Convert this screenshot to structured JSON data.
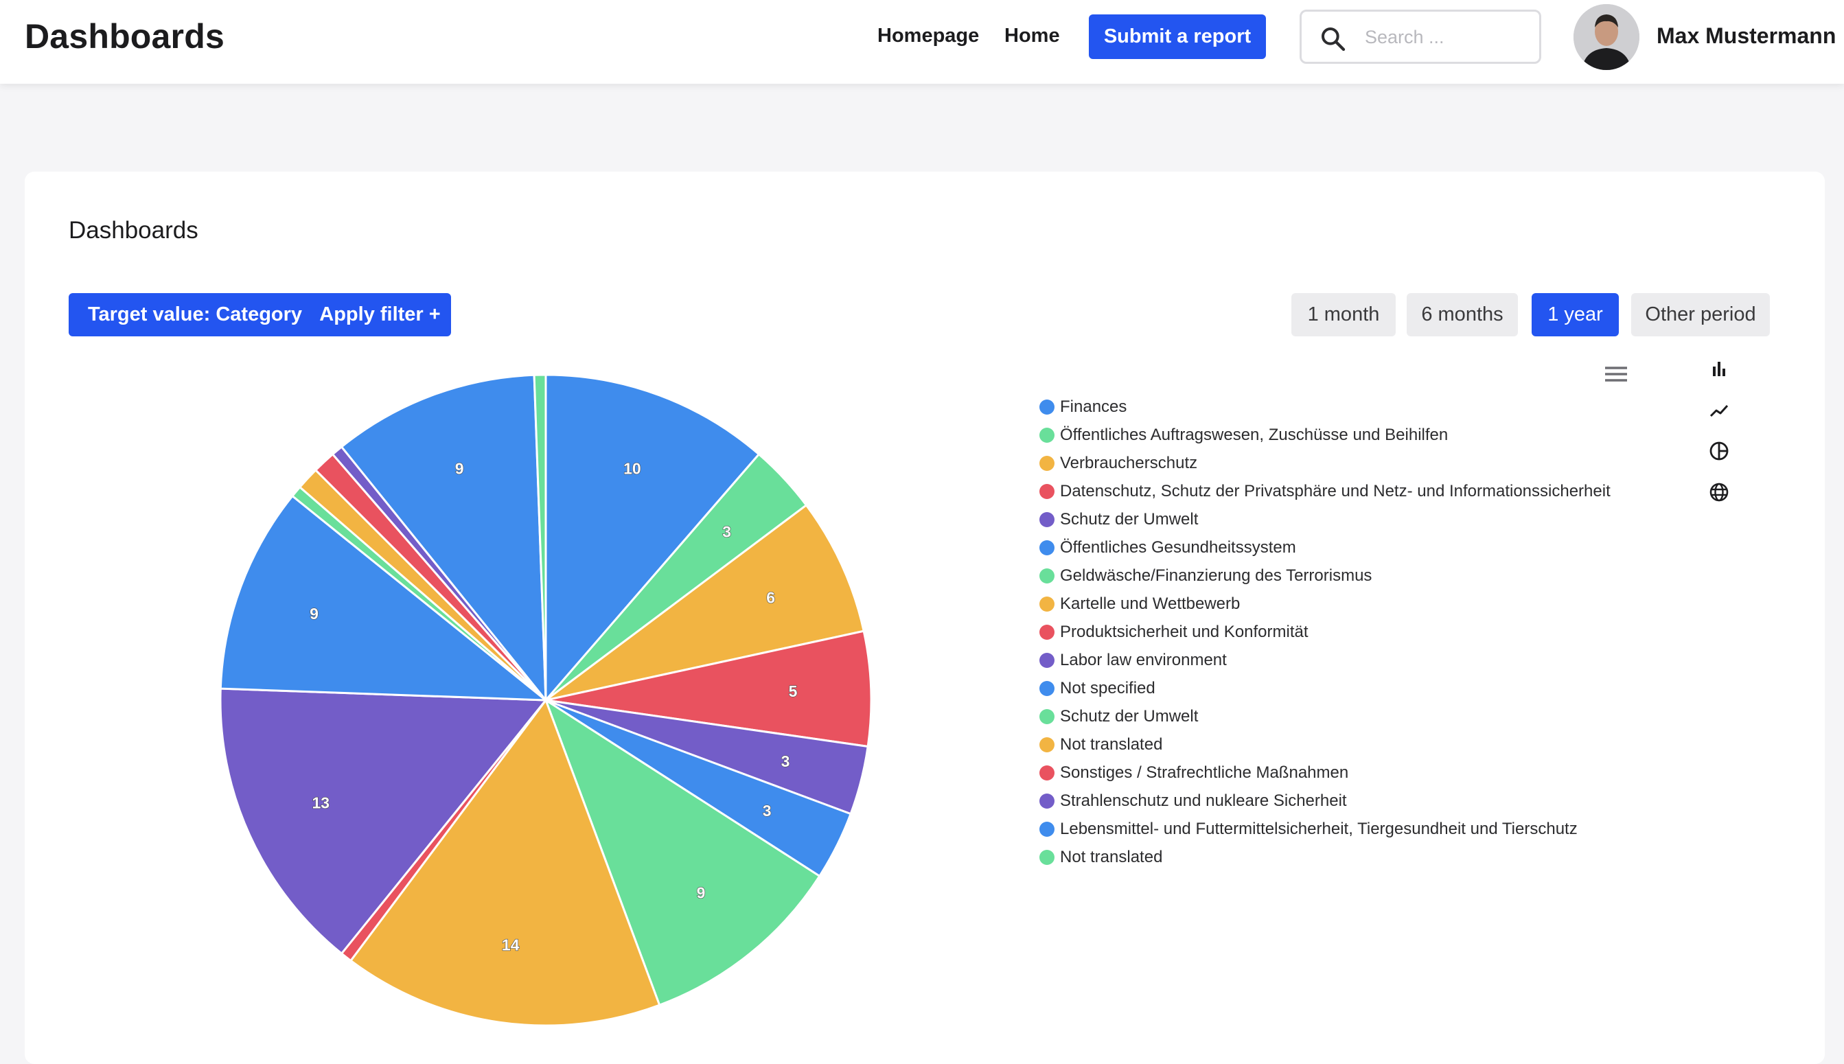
{
  "header": {
    "title": "Dashboards",
    "nav": {
      "homepage": "Homepage",
      "home": "Home"
    },
    "submit_label": "Submit a report",
    "search_placeholder": "Search ...",
    "user_name": "Max Mustermann"
  },
  "card": {
    "title": "Dashboards",
    "target_label": "Target value: Category",
    "filter_label": "Apply filter +",
    "periods": [
      "1 month",
      "6 months",
      "1 year",
      "Other period"
    ],
    "active_period": "1 year"
  },
  "colors": {
    "primary": "#2355f0",
    "blue": "#3f8ced",
    "green": "#69df9a",
    "orange": "#f2b442",
    "red": "#e9525f",
    "purple": "#735dc8"
  },
  "icons": [
    "search-icon",
    "menu-icon",
    "bar-chart-icon",
    "line-chart-icon",
    "pie-chart-icon",
    "globe-icon"
  ],
  "chart_data": {
    "type": "pie",
    "title": "",
    "slices": [
      {
        "label": "Finances",
        "value": 10,
        "color": "#3f8ced"
      },
      {
        "label": "Öffentliches Auftragswesen, Zuschüsse und Beihilfen",
        "value": 3,
        "color": "#69df9a"
      },
      {
        "label": "Verbraucherschutz",
        "value": 6,
        "color": "#f2b442"
      },
      {
        "label": "Datenschutz, Schutz der Privatsphäre und Netz- und Informationssicherheit",
        "value": 5,
        "color": "#e9525f"
      },
      {
        "label": "Schutz der Umwelt",
        "value": 3,
        "color": "#735dc8"
      },
      {
        "label": "Öffentliches Gesundheitssystem",
        "value": 3,
        "color": "#3f8ced"
      },
      {
        "label": "Geldwäsche/Finanzierung des Terrorismus",
        "value": 9,
        "color": "#69df9a"
      },
      {
        "label": "Kartelle und Wettbewerb",
        "value": 14,
        "color": "#f2b442"
      },
      {
        "label": "Produktsicherheit und Konformität",
        "value": 0.5,
        "color": "#e9525f"
      },
      {
        "label": "Labor law environment",
        "value": 13,
        "color": "#735dc8"
      },
      {
        "label": "Not specified",
        "value": 9,
        "color": "#3f8ced"
      },
      {
        "label": "Schutz der Umwelt",
        "value": 0.5,
        "color": "#69df9a"
      },
      {
        "label": "Not translated",
        "value": 1,
        "color": "#f2b442"
      },
      {
        "label": "Sonstiges / Strafrechtliche Maßnahmen",
        "value": 1,
        "color": "#e9525f"
      },
      {
        "label": "Strahlenschutz und nukleare Sicherheit",
        "value": 0.5,
        "color": "#735dc8"
      },
      {
        "label": "Lebensmittel- und Futtermittelsicherheit, Tiergesundheit und Tierschutz",
        "value": 9,
        "color": "#3f8ced"
      },
      {
        "label": "Not translated",
        "value": 0.5,
        "color": "#69df9a"
      }
    ],
    "data_labels": [
      "10",
      "3",
      "6",
      "5",
      "3",
      "3",
      "9",
      "14",
      "",
      "13",
      "9",
      "",
      "",
      "",
      "",
      "9",
      ""
    ],
    "legend_position": "right"
  }
}
